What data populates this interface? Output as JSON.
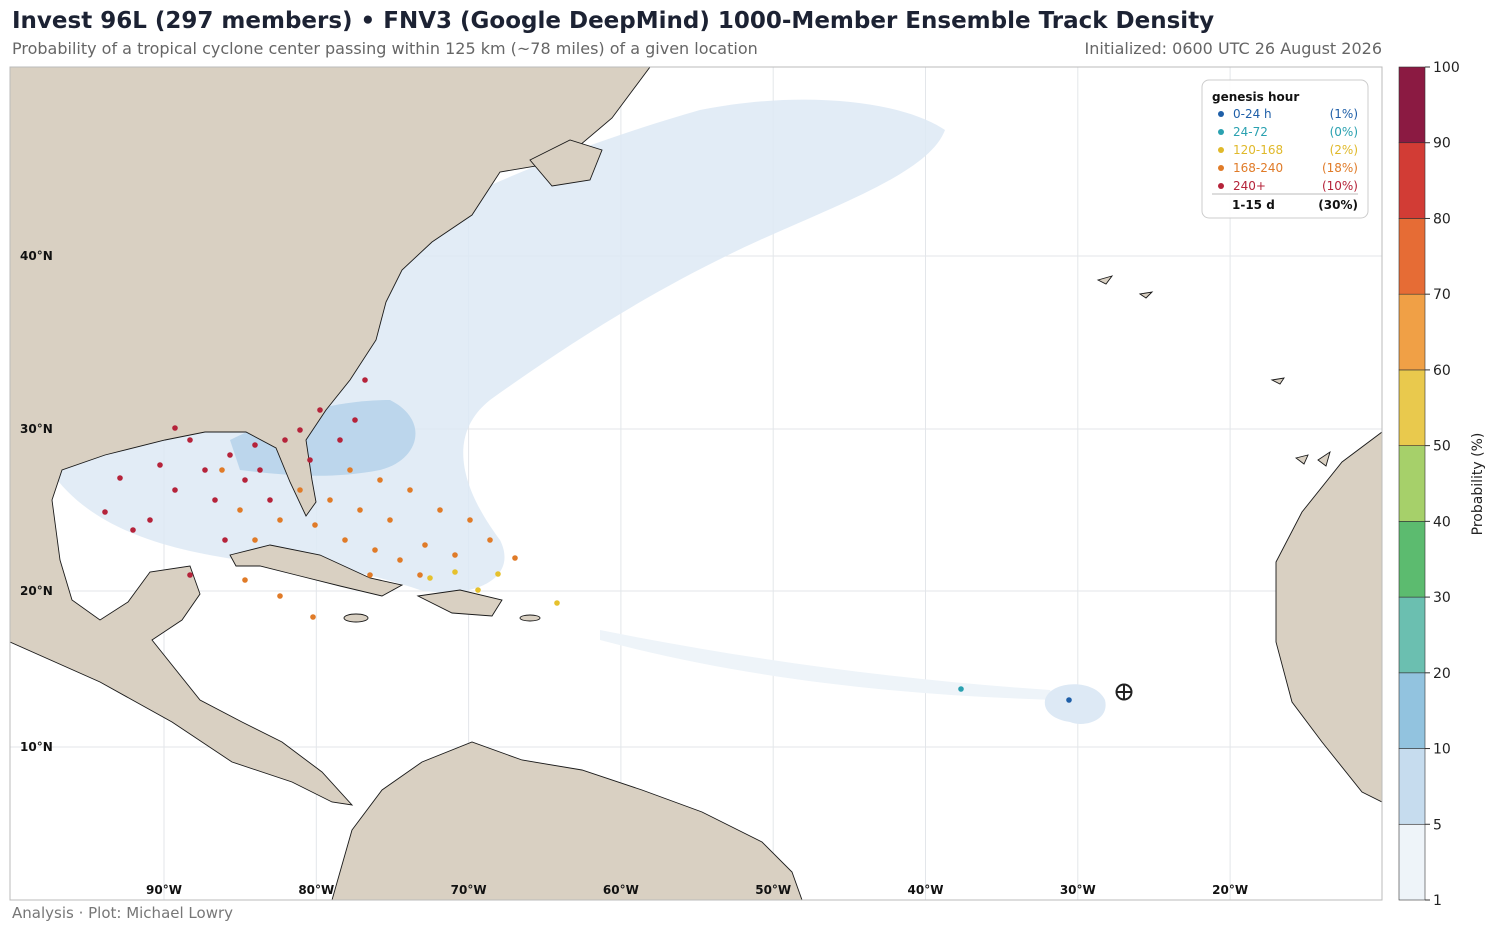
{
  "header": {
    "title": "Invest 96L (297 members) • FNV3 (Google DeepMind) 1000-Member Ensemble Track Density",
    "subtitle": "Probability of a tropical cyclone center passing within 125 km (~78 miles) of a given location",
    "initialized": "Initialized: 0600 UTC 26 August 2026"
  },
  "map": {
    "lat_labels": [
      "40°N",
      "30°N",
      "20°N",
      "10°N"
    ],
    "lon_labels": [
      "90°W",
      "80°W",
      "70°W",
      "60°W",
      "50°W",
      "40°W",
      "30°W",
      "20°W"
    ]
  },
  "legend": {
    "title": "genesis hour",
    "entries": [
      {
        "label": "0-24 h",
        "share": "(1%)",
        "color": "#1f5fa8"
      },
      {
        "label": "24-72",
        "share": "(0%)",
        "color": "#2aa1b0"
      },
      {
        "label": "120-168",
        "share": "(2%)",
        "color": "#e0b92a"
      },
      {
        "label": "168-240",
        "share": "(18%)",
        "color": "#e07b28"
      },
      {
        "label": "240+",
        "share": "(10%)",
        "color": "#b5233a"
      }
    ],
    "total": {
      "label": "1-15 d",
      "share": "(30%)"
    }
  },
  "colorbar": {
    "label": "Probability (%)",
    "ticks": [
      1,
      5,
      10,
      20,
      30,
      40,
      50,
      60,
      70,
      80,
      90,
      100
    ],
    "colors": [
      "#eef4f9",
      "#c6dcee",
      "#92c3df",
      "#6bbfb0",
      "#5cbb6f",
      "#a6d06a",
      "#e9c94d",
      "#f0a046",
      "#e66c35",
      "#d23c35",
      "#8b1a42"
    ]
  },
  "footer": {
    "credit": "Analysis · Plot: Michael Lowry"
  }
}
